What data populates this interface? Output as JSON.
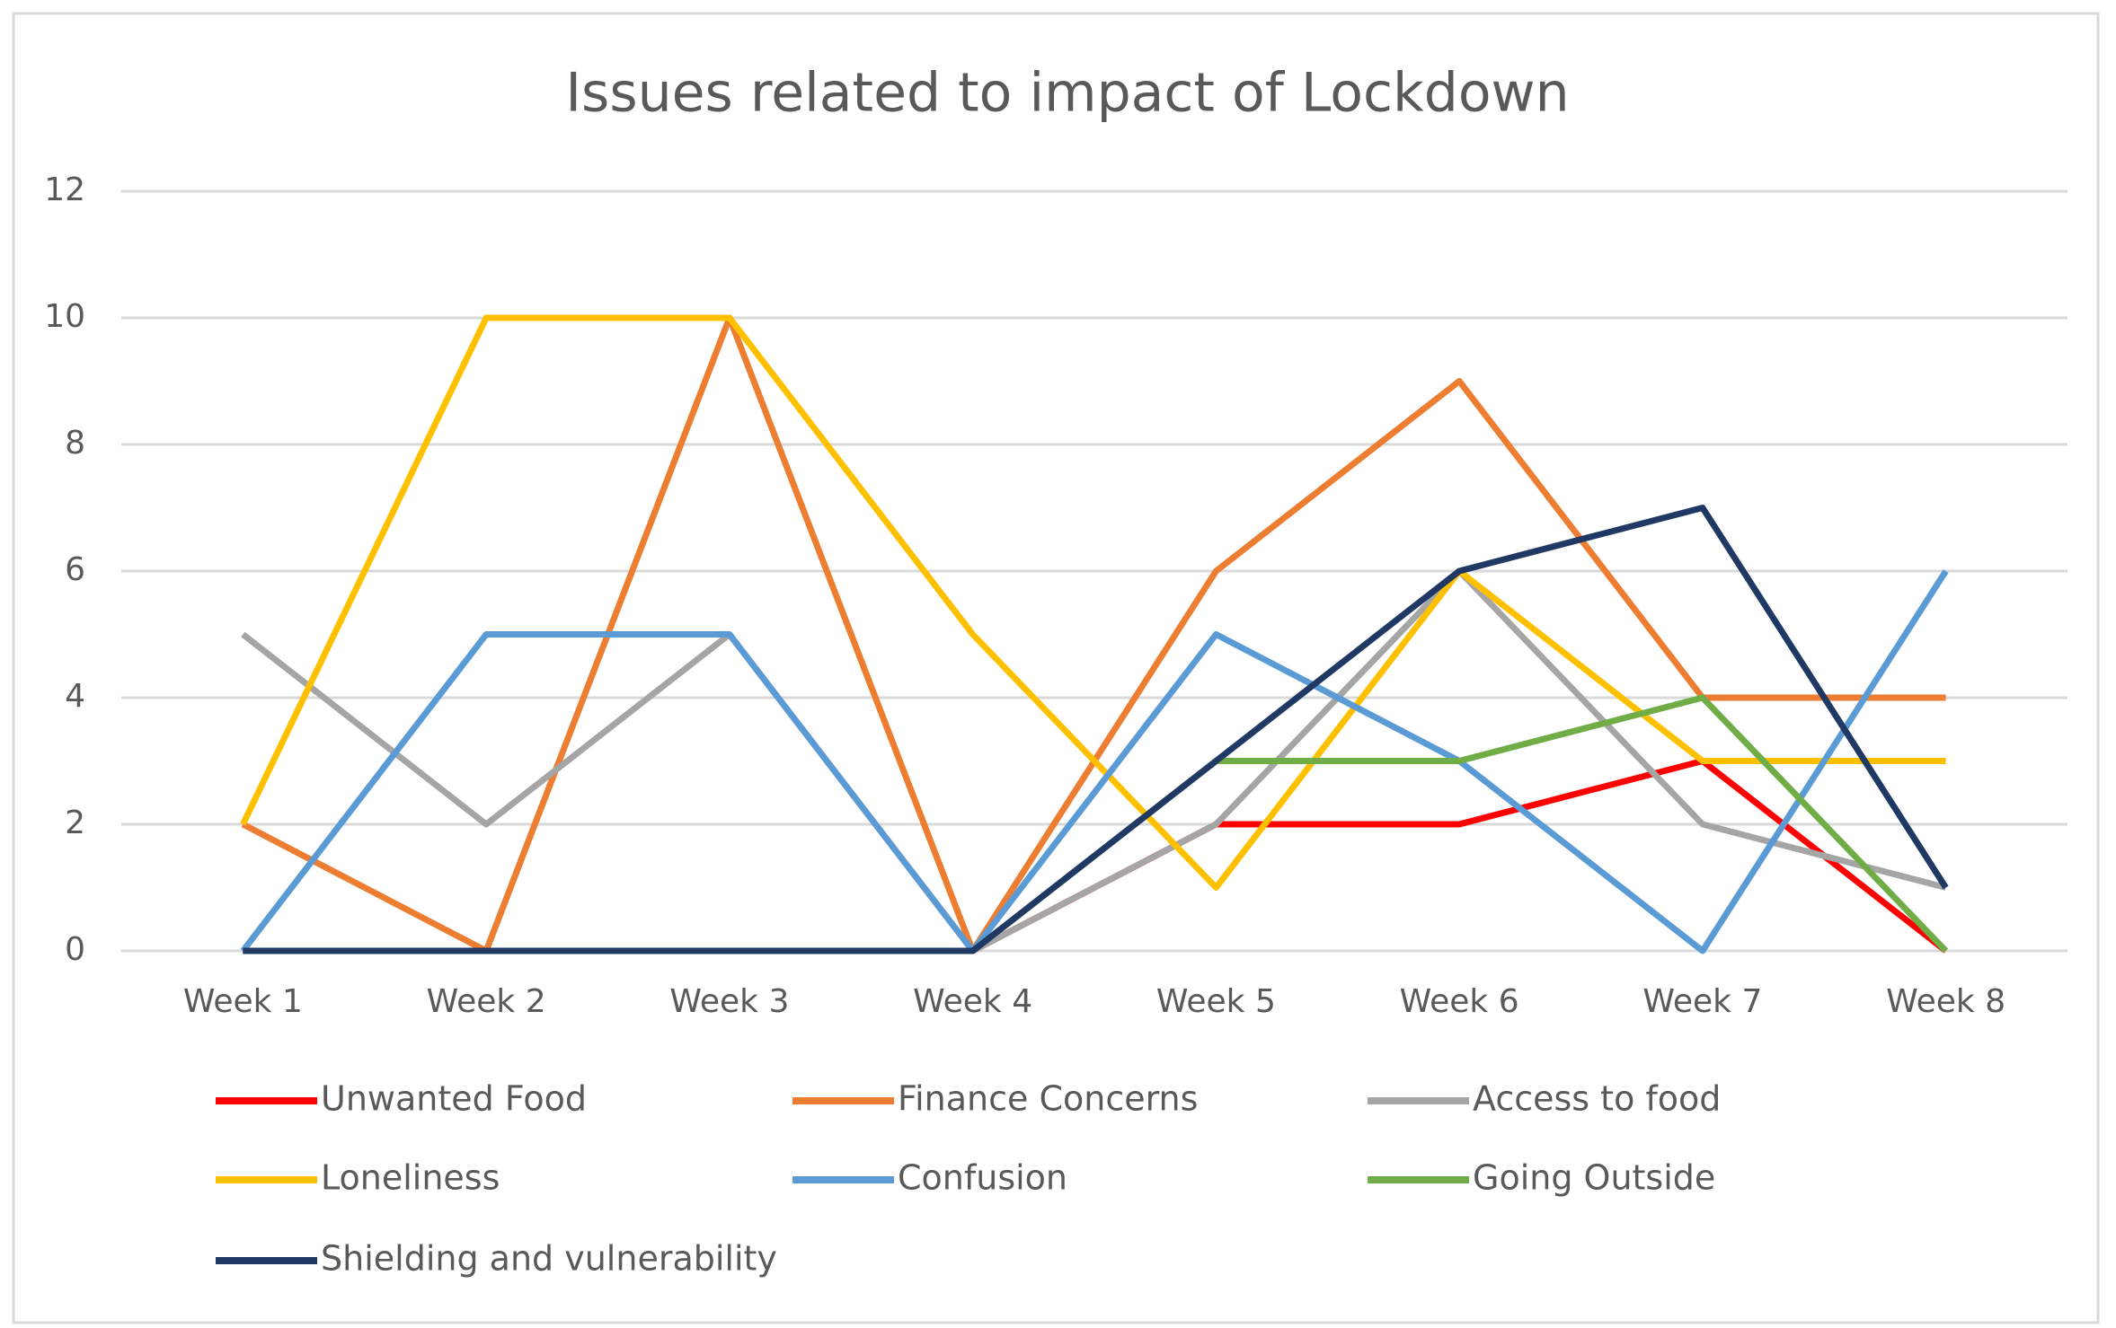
{
  "chart_data": {
    "type": "line",
    "title": "Issues related to impact of Lockdown",
    "categories": [
      "Week 1",
      "Week 2",
      "Week 3",
      "Week 4",
      "Week 5",
      "Week 6",
      "Week 7",
      "Week 8"
    ],
    "series": [
      {
        "name": "Unwanted Food",
        "color": "#ff0000",
        "values": [
          0,
          0,
          0,
          0,
          2,
          2,
          3,
          0
        ]
      },
      {
        "name": "Finance Concerns",
        "color": "#ed7d31",
        "values": [
          2,
          0,
          10,
          0,
          6,
          9,
          4,
          4
        ]
      },
      {
        "name": "Access to food",
        "color": "#a5a5a5",
        "values": [
          5,
          2,
          5,
          0,
          2,
          6,
          2,
          1
        ]
      },
      {
        "name": "Loneliness",
        "color": "#ffc000",
        "values": [
          2,
          10,
          10,
          5,
          1,
          6,
          3,
          3
        ]
      },
      {
        "name": "Confusion",
        "color": "#5b9bd5",
        "values": [
          0,
          5,
          5,
          0,
          5,
          3,
          0,
          6
        ]
      },
      {
        "name": "Going Outside",
        "color": "#70ad47",
        "values": [
          0,
          0,
          0,
          0,
          3,
          3,
          4,
          0
        ]
      },
      {
        "name": "Shielding and vulnerability",
        "color": "#203864",
        "values": [
          0,
          0,
          0,
          0,
          3,
          6,
          7,
          1
        ]
      }
    ],
    "ylim": [
      0,
      12
    ],
    "yticks": [
      0,
      2,
      4,
      6,
      8,
      10,
      12
    ],
    "grid": true,
    "legend": "bottom"
  }
}
